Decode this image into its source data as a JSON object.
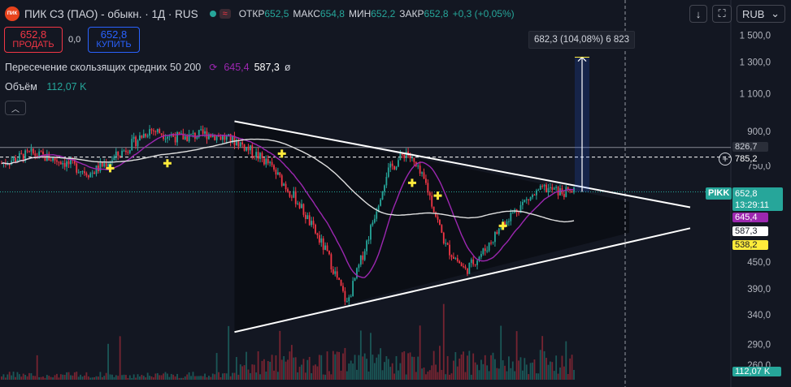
{
  "header": {
    "logo_text": "ПИК",
    "title": "ПИК СЗ (ПАО) - обыкн. · 1Д · RUS",
    "ohlc": [
      {
        "label": "ОТКР",
        "value": "652,5"
      },
      {
        "label": "МАКС",
        "value": "654,8"
      },
      {
        "label": "МИН",
        "value": "652,2"
      },
      {
        "label": "ЗАКР",
        "value": "652,8"
      }
    ],
    "change": "+0,3 (+0,05%)",
    "wave_icon": "≈",
    "currency": "RUB",
    "currency_chevron": "⌄",
    "status_color": "#26a69a"
  },
  "trade": {
    "sell_price": "652,8",
    "sell_label": "ПРОДАТЬ",
    "spread": "0,0",
    "buy_price": "652,8",
    "buy_label": "КУПИТЬ"
  },
  "indicators": {
    "ma_label": "Пересечение скользящих средних 50 200",
    "ma50_value": "645,4",
    "ma200_value": "587,3",
    "null_symbol": "ø",
    "volume_label": "Объём",
    "volume_value": "112,07 K"
  },
  "measure_label": "682,3 (104,08%) 6 823",
  "colors": {
    "bg": "#131722",
    "up": "#26a69a",
    "down": "#f23645",
    "ma50": "#9c27b0",
    "ma200": "#e0e0e0",
    "cross": "#ffeb3b",
    "trend": "#ffffff",
    "measure": "#2962ff"
  },
  "chart_data": {
    "type": "candlestick",
    "timeframe": "1Д",
    "symbol_label": "PIKK",
    "y_axis_ticks": [
      "1 500,0",
      "1 300,0",
      "1 100,0",
      "900,0",
      "750,0",
      "450,0",
      "390,0",
      "340,0",
      "290,0",
      "260,0"
    ],
    "y_scale": "log",
    "price_labels": [
      {
        "name": "level-high",
        "value": "826,7"
      },
      {
        "name": "level-mid",
        "value": "785,2"
      },
      {
        "name": "last",
        "value": "652,8",
        "time": "13:29:11"
      },
      {
        "name": "ma50",
        "value": "645,4"
      },
      {
        "name": "ma200",
        "value": "587,3"
      },
      {
        "name": "low",
        "value": "538,2"
      },
      {
        "name": "volume",
        "value": "112,07 K"
      }
    ],
    "horizontal_levels": [
      826.7,
      785.2
    ],
    "approx_close_path": [
      {
        "i": 0,
        "close": 760
      },
      {
        "i": 15,
        "close": 800
      },
      {
        "i": 30,
        "close": 770
      },
      {
        "i": 45,
        "close": 720
      },
      {
        "i": 60,
        "close": 800
      },
      {
        "i": 75,
        "close": 910
      },
      {
        "i": 90,
        "close": 870
      },
      {
        "i": 105,
        "close": 890
      },
      {
        "i": 120,
        "close": 850
      },
      {
        "i": 135,
        "close": 760
      },
      {
        "i": 150,
        "close": 620
      },
      {
        "i": 165,
        "close": 470
      },
      {
        "i": 175,
        "close": 360
      },
      {
        "i": 185,
        "close": 500
      },
      {
        "i": 195,
        "close": 720
      },
      {
        "i": 205,
        "close": 810
      },
      {
        "i": 215,
        "close": 680
      },
      {
        "i": 225,
        "close": 490
      },
      {
        "i": 235,
        "close": 430
      },
      {
        "i": 245,
        "close": 480
      },
      {
        "i": 255,
        "close": 560
      },
      {
        "i": 265,
        "close": 620
      },
      {
        "i": 275,
        "close": 665
      },
      {
        "i": 285,
        "close": 650
      },
      {
        "i": 290,
        "close": 652.8
      }
    ],
    "ma_crosses": [
      {
        "i": 55,
        "price": 740
      },
      {
        "i": 84,
        "price": 760
      },
      {
        "i": 142,
        "price": 800
      },
      {
        "i": 208,
        "price": 685
      },
      {
        "i": 221,
        "price": 640
      },
      {
        "i": 254,
        "price": 545
      }
    ],
    "measure": {
      "from": 652.8,
      "to": 1335,
      "label": "682,3 (104,08%) 6 823"
    },
    "triangle": {
      "upper": [
        {
          "i": 118,
          "price": 950
        },
        {
          "i": 318,
          "price": 620
        }
      ],
      "lower": [
        {
          "i": 118,
          "price": 310
        },
        {
          "i": 318,
          "price": 525
        }
      ]
    }
  }
}
